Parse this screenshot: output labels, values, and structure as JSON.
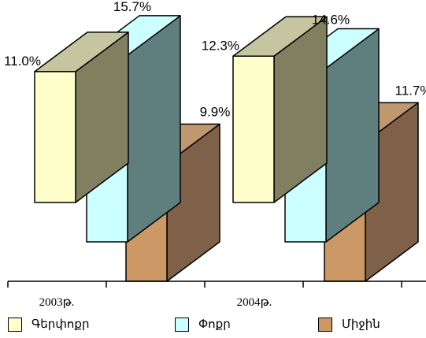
{
  "chart_data": {
    "type": "bar",
    "categories": [
      "2003թ.",
      "2004թ."
    ],
    "series": [
      {
        "name": "Գերփոքր",
        "values": [
          11.0,
          12.3
        ],
        "labels": [
          "11.0%",
          "12.3%"
        ],
        "color": "#ffffcc"
      },
      {
        "name": "Փոքր",
        "values": [
          15.7,
          14.6
        ],
        "labels": [
          "15.7%",
          "14.6%"
        ],
        "color": "#ccffff"
      },
      {
        "name": "Միջին",
        "values": [
          9.9,
          11.7
        ],
        "labels": [
          "9.9%",
          "11.7%"
        ],
        "color": "#cc9966"
      }
    ],
    "colors": {
      "front_top": "#c5c59f",
      "side_small": "#808060",
      "side_medium": "#5f7f7f",
      "side_large": "#7f6048",
      "top_large": "#c09870"
    },
    "title": "",
    "xlabel": "",
    "ylabel": "",
    "legend_position": "bottom",
    "grid": false
  }
}
